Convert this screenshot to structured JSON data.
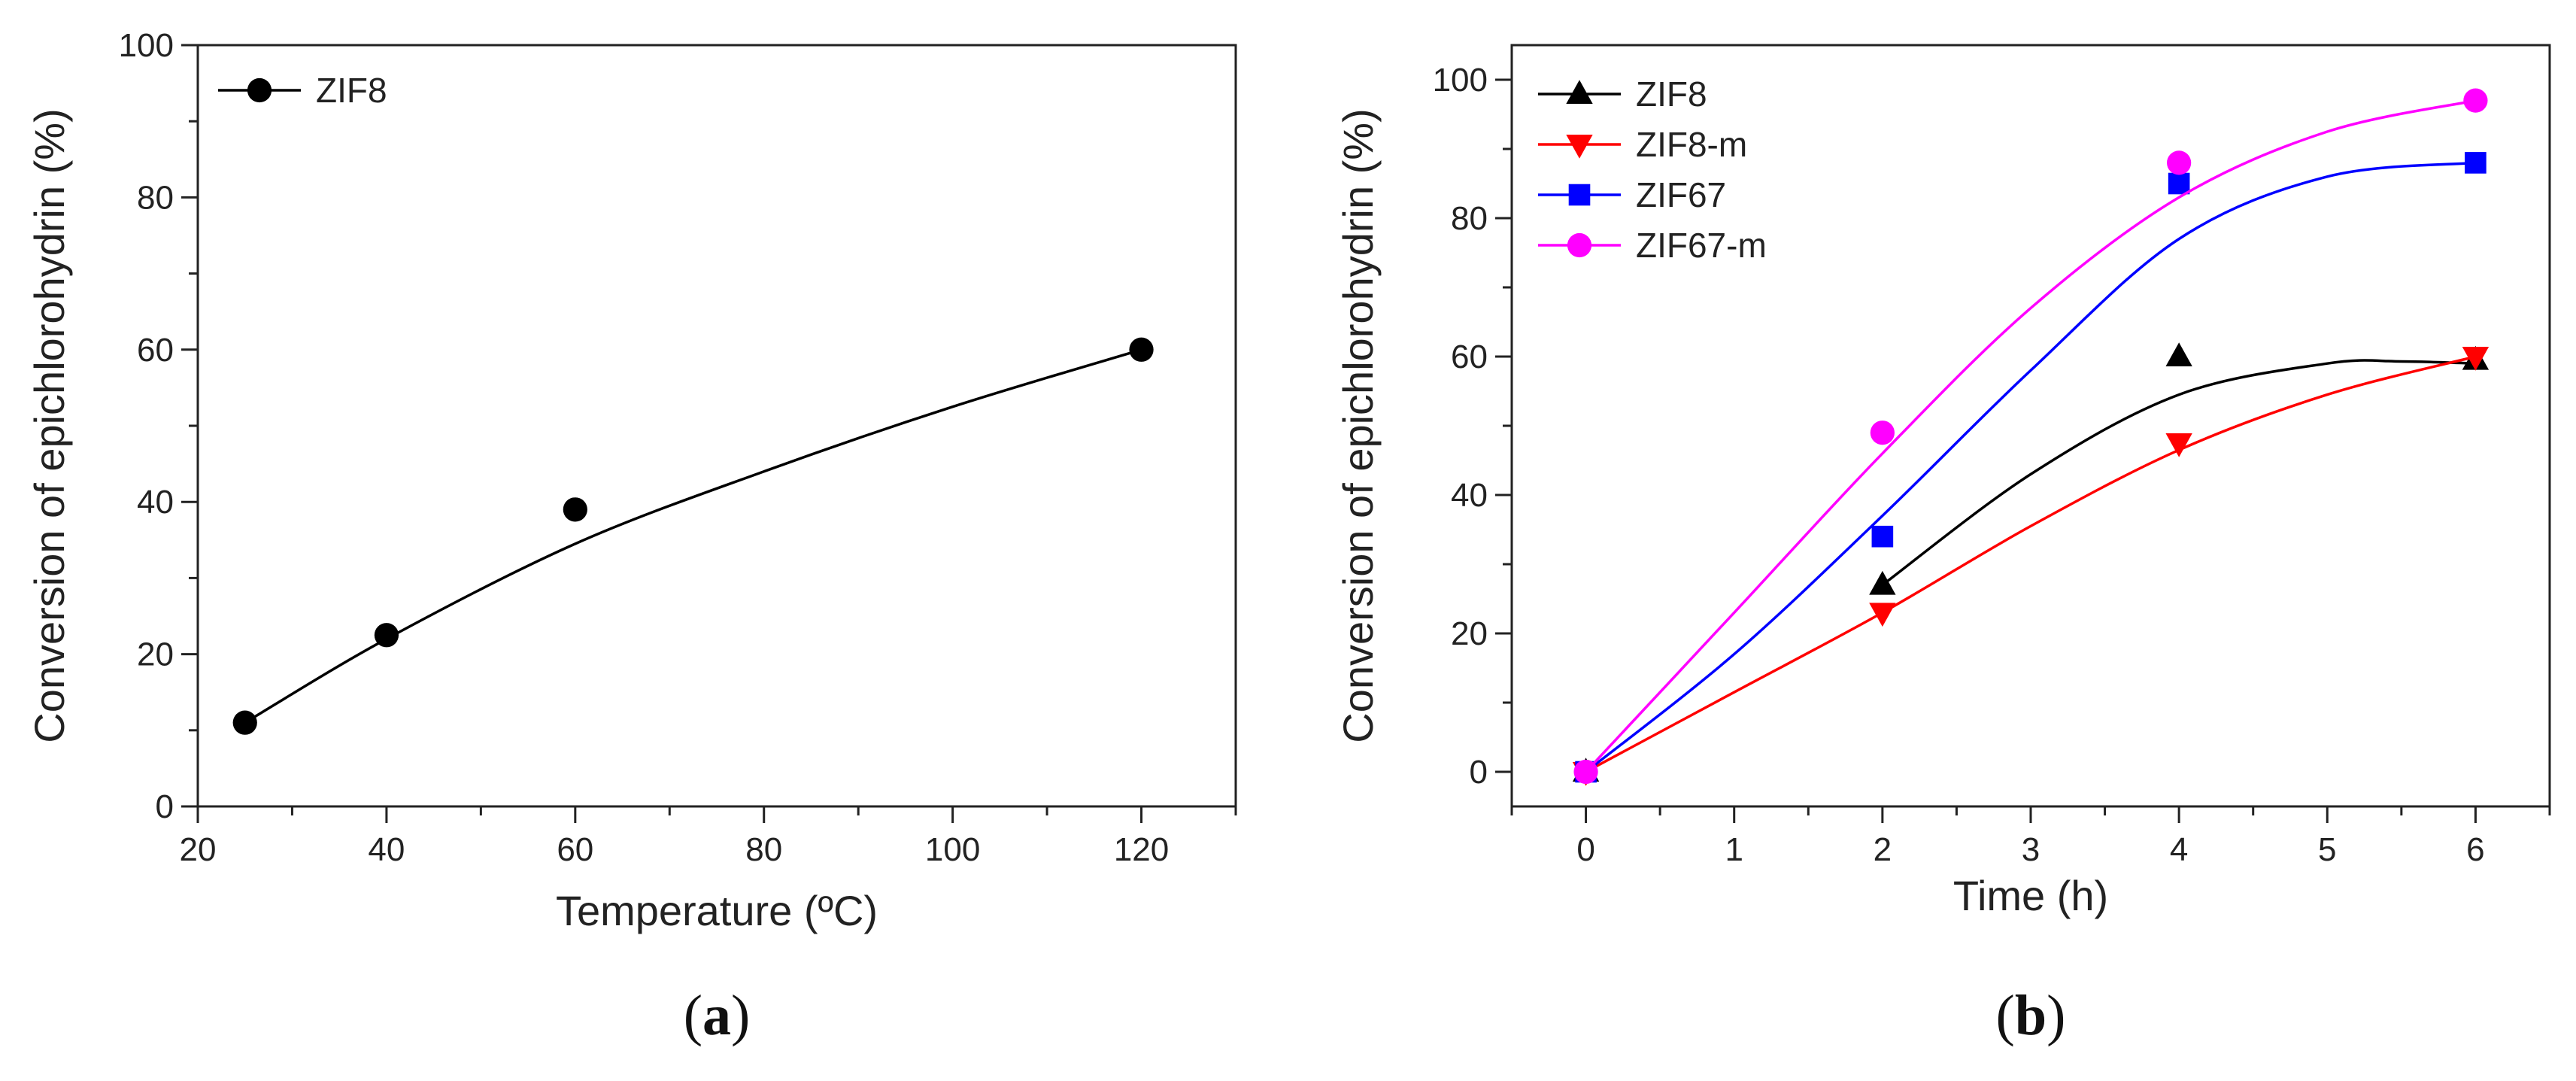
{
  "chart_data": [
    {
      "type": "scatter",
      "panel_label": {
        "open": "(",
        "letter": "a",
        "close": ")"
      },
      "title": "",
      "xlabel": "Temperature (ºC)",
      "ylabel": "Conversion of epichlorohydrin (%)",
      "xlim": [
        20,
        130
      ],
      "ylim": [
        0,
        100
      ],
      "xticks": [
        20,
        40,
        60,
        80,
        100,
        120
      ],
      "yticks": [
        0,
        20,
        40,
        60,
        80,
        100
      ],
      "grid": false,
      "legend_position": "top-left",
      "series": [
        {
          "name": "ZIF8",
          "color": "#000000",
          "marker": "circle",
          "points": [
            {
              "x": 25,
              "y": 11
            },
            {
              "x": 40,
              "y": 22.5
            },
            {
              "x": 60,
              "y": 39
            },
            {
              "x": 120,
              "y": 60
            }
          ],
          "fit": [
            {
              "x": 25,
              "y": 11
            },
            {
              "x": 40,
              "y": 22
            },
            {
              "x": 60,
              "y": 34.5
            },
            {
              "x": 80,
              "y": 44
            },
            {
              "x": 100,
              "y": 52.5
            },
            {
              "x": 120,
              "y": 60
            }
          ]
        }
      ]
    },
    {
      "type": "scatter",
      "panel_label": {
        "open": "(",
        "letter": "b",
        "close": ")"
      },
      "title": "",
      "xlabel": "Time (h)",
      "ylabel": "Conversion of epichlorohydrin (%)",
      "xlim": [
        -0.5,
        6.5
      ],
      "ylim": [
        -5,
        105
      ],
      "xticks": [
        0,
        1,
        2,
        3,
        4,
        5,
        6
      ],
      "yticks": [
        0,
        20,
        40,
        60,
        80,
        100
      ],
      "grid": false,
      "legend_position": "top-left",
      "series": [
        {
          "name": "ZIF8",
          "color": "#000000",
          "marker": "triangle-up",
          "points": [
            {
              "x": 0,
              "y": 0
            },
            {
              "x": 2,
              "y": 27
            },
            {
              "x": 4,
              "y": 60
            },
            {
              "x": 6,
              "y": 59.5
            }
          ],
          "fit": [
            {
              "x": 2,
              "y": 27
            },
            {
              "x": 3,
              "y": 43
            },
            {
              "x": 4,
              "y": 54.5
            },
            {
              "x": 5,
              "y": 59
            },
            {
              "x": 5.5,
              "y": 59.3
            },
            {
              "x": 6,
              "y": 59
            }
          ]
        },
        {
          "name": "ZIF8-m",
          "color": "#ff0000",
          "marker": "triangle-down",
          "points": [
            {
              "x": 0,
              "y": 0
            },
            {
              "x": 2,
              "y": 23
            },
            {
              "x": 4,
              "y": 47.5
            },
            {
              "x": 6,
              "y": 60
            }
          ],
          "fit": [
            {
              "x": 0,
              "y": 0
            },
            {
              "x": 1,
              "y": 11.5
            },
            {
              "x": 2,
              "y": 23
            },
            {
              "x": 3,
              "y": 35.5
            },
            {
              "x": 4,
              "y": 46.5
            },
            {
              "x": 5,
              "y": 54.5
            },
            {
              "x": 6,
              "y": 60
            }
          ]
        },
        {
          "name": "ZIF67",
          "color": "#0000ff",
          "marker": "square",
          "points": [
            {
              "x": 0,
              "y": 0
            },
            {
              "x": 2,
              "y": 34
            },
            {
              "x": 4,
              "y": 85
            },
            {
              "x": 6,
              "y": 88
            }
          ],
          "fit": [
            {
              "x": 0,
              "y": 0
            },
            {
              "x": 1,
              "y": 17
            },
            {
              "x": 2,
              "y": 37
            },
            {
              "x": 3,
              "y": 58
            },
            {
              "x": 4,
              "y": 77
            },
            {
              "x": 5,
              "y": 86
            },
            {
              "x": 6,
              "y": 88
            }
          ]
        },
        {
          "name": "ZIF67-m",
          "color": "#ff00ff",
          "marker": "circle",
          "points": [
            {
              "x": 0,
              "y": 0
            },
            {
              "x": 2,
              "y": 49
            },
            {
              "x": 4,
              "y": 88
            },
            {
              "x": 6,
              "y": 97
            }
          ],
          "fit": [
            {
              "x": 0,
              "y": 0
            },
            {
              "x": 1,
              "y": 23
            },
            {
              "x": 2,
              "y": 46
            },
            {
              "x": 3,
              "y": 67
            },
            {
              "x": 4,
              "y": 83
            },
            {
              "x": 5,
              "y": 92.5
            },
            {
              "x": 6,
              "y": 97
            }
          ]
        }
      ]
    }
  ]
}
